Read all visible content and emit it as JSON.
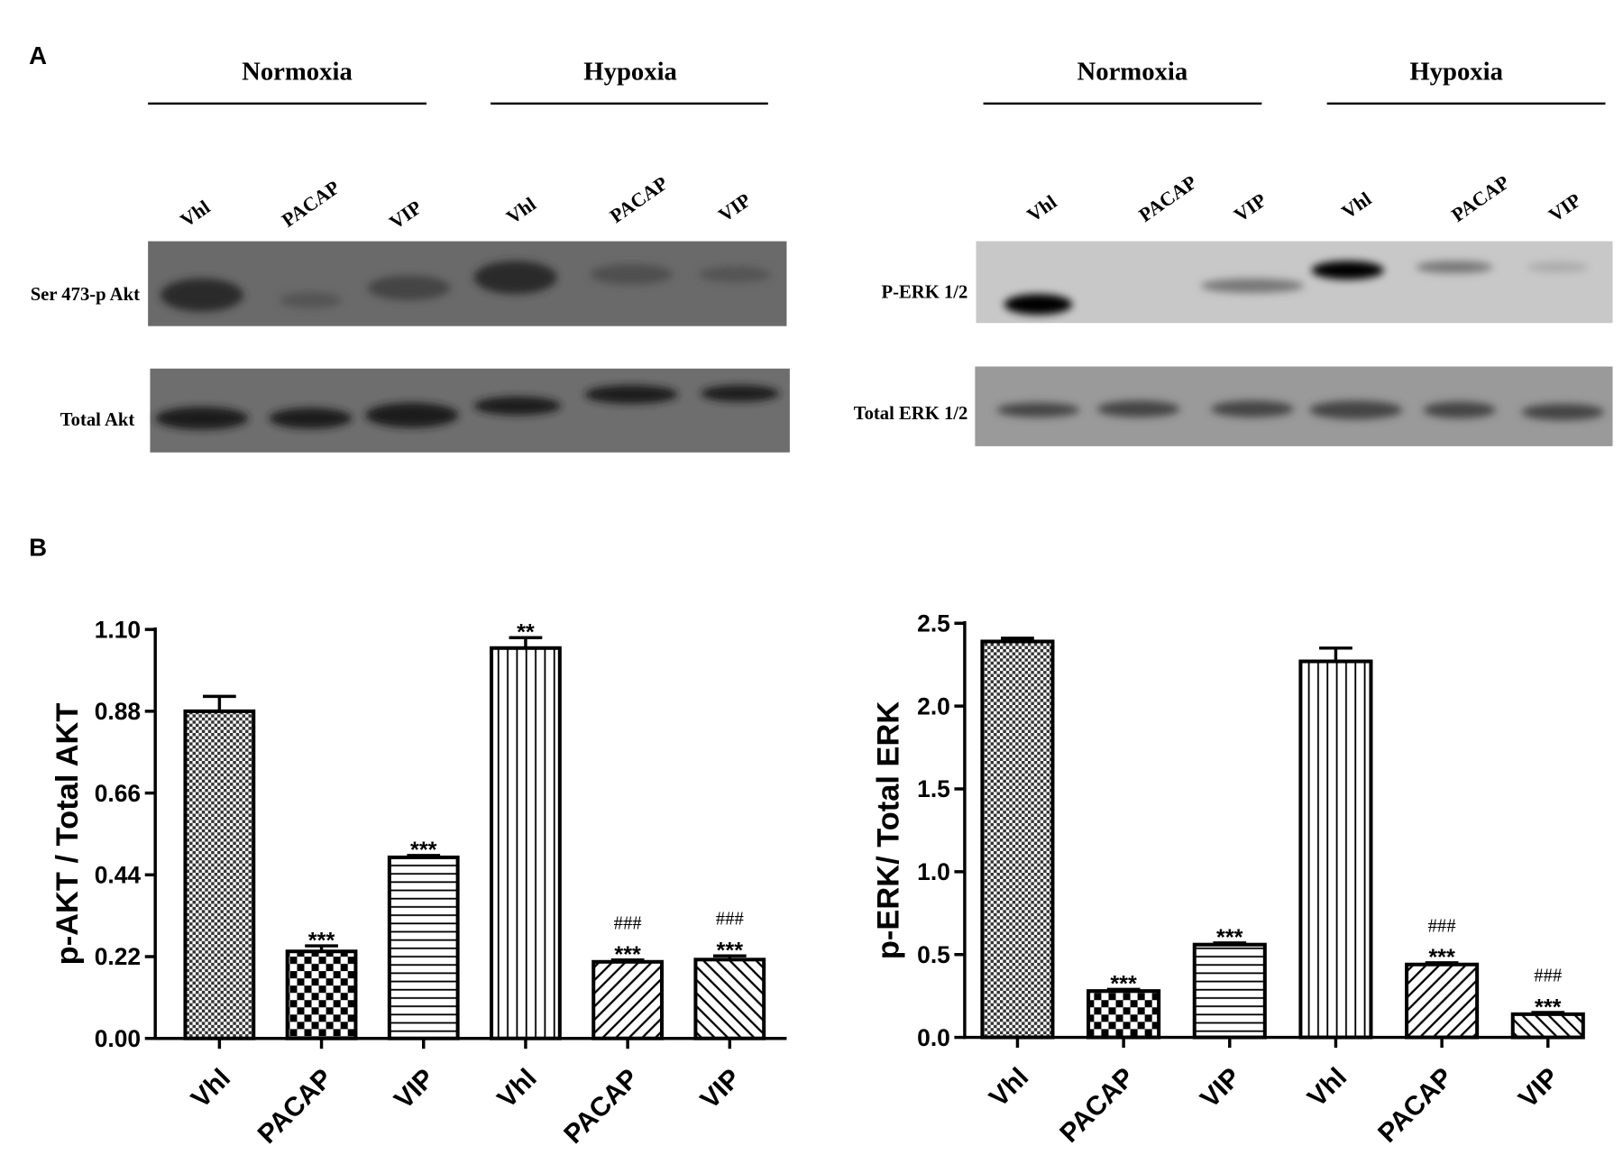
{
  "panel_labels": [
    "A",
    "B"
  ],
  "blots": [
    {
      "groups": [
        "Normoxia",
        "Hypoxia"
      ],
      "lanes": [
        "Vhl",
        "PACAP",
        "VIP",
        "Vhl",
        "PACAP",
        "VIP"
      ],
      "rows": [
        "Ser 473-p Akt",
        "Total Akt"
      ]
    },
    {
      "groups": [
        "Normoxia",
        "Hypoxia"
      ],
      "lanes": [
        "Vhl",
        "PACAP",
        "VIP",
        "Vhl",
        "PACAP",
        "VIP"
      ],
      "rows": [
        "P-ERK 1/2",
        "Total ERK 1/2"
      ]
    }
  ],
  "chart_data": [
    {
      "type": "bar",
      "y_label": "p-AKT / Total AKT",
      "categories": [
        "Vhl",
        "PACAP",
        "VIP",
        "Vhl",
        "PACAP",
        "VIP"
      ],
      "values": [
        0.88,
        0.234,
        0.487,
        1.05,
        0.206,
        0.212
      ],
      "errors": [
        0.04,
        0.015,
        0.005,
        0.028,
        0.005,
        0.01
      ],
      "sig_vs_vehicle": [
        null,
        "***",
        "***",
        "**",
        "***",
        "***"
      ],
      "sig_vs_hypoxia_vehicle": [
        null,
        null,
        null,
        null,
        "###",
        "###"
      ],
      "patterns": [
        "fine-checker",
        "checker",
        "horizontal",
        "vertical",
        "diagonal-up",
        "diagonal-down"
      ],
      "color": "#000000",
      "ylim": [
        0,
        1.1
      ],
      "yticks": [
        {
          "value": 0,
          "label": "0.00"
        },
        0.22,
        0.44,
        0.66,
        0.88,
        {
          "value": 1.1,
          "label": "1.10"
        }
      ]
    },
    {
      "type": "bar",
      "y_label": "p-ERK/ Total ERK",
      "categories": [
        "Vhl",
        "PACAP",
        "VIP",
        "Vhl",
        "PACAP",
        "VIP"
      ],
      "values": [
        2.39,
        0.28,
        0.56,
        2.27,
        0.44,
        0.14
      ],
      "errors": [
        0.02,
        0.01,
        0.01,
        0.08,
        0.01,
        0.01
      ],
      "sig_vs_vehicle": [
        null,
        "***",
        "***",
        null,
        "***",
        "***"
      ],
      "sig_vs_hypoxia_vehicle": [
        null,
        null,
        null,
        null,
        "###",
        "###"
      ],
      "patterns": [
        "fine-checker",
        "checker",
        "horizontal",
        "vertical",
        "diagonal-up",
        "diagonal-down"
      ],
      "color": "#000000",
      "ylim": [
        0,
        2.5
      ],
      "yticks": [
        {
          "value": 0,
          "label": "0.0"
        },
        0.5,
        {
          "value": 1,
          "label": "1.0"
        },
        1.5,
        {
          "value": 2,
          "label": "2.0"
        },
        2.5
      ]
    }
  ]
}
